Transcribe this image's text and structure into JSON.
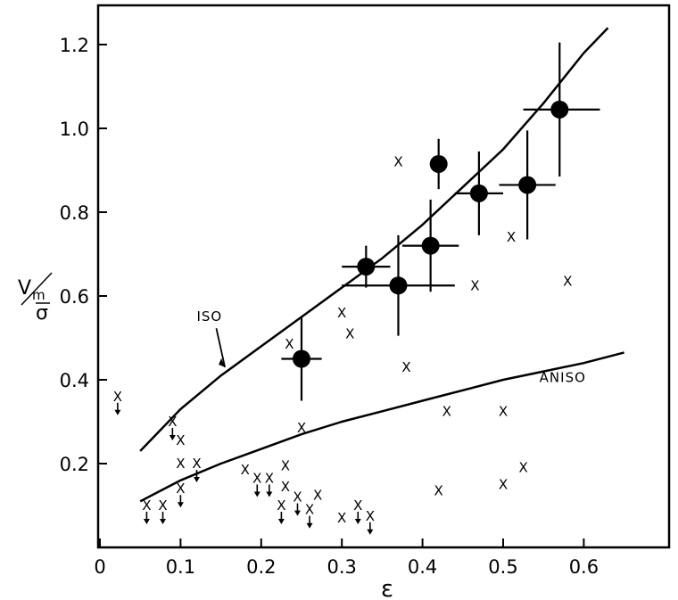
{
  "chart_data": {
    "type": "scatter",
    "title": "",
    "xlabel": "ε",
    "ylabel": {
      "v": "V",
      "sub": "m",
      "sigma": "σ"
    },
    "xlim": [
      0,
      0.7
    ],
    "ylim": [
      0,
      1.3
    ],
    "xticks": [
      {
        "v": 0,
        "label": "0"
      },
      {
        "v": 0.1,
        "label": "0.1"
      },
      {
        "v": 0.2,
        "label": "0.2"
      },
      {
        "v": 0.3,
        "label": "0.3"
      },
      {
        "v": 0.4,
        "label": "0.4"
      },
      {
        "v": 0.5,
        "label": "0.5"
      },
      {
        "v": 0.6,
        "label": "0.6"
      }
    ],
    "yticks": [
      {
        "v": 0.2,
        "label": "0.2"
      },
      {
        "v": 0.4,
        "label": "0.4"
      },
      {
        "v": 0.6,
        "label": "0.6"
      },
      {
        "v": 0.8,
        "label": "0.8"
      },
      {
        "v": 1.0,
        "label": "1.0"
      },
      {
        "v": 1.2,
        "label": "1.2"
      }
    ],
    "grid": false,
    "series": [
      {
        "name": "ISO",
        "kind": "line",
        "points": [
          [
            0.05,
            0.23
          ],
          [
            0.1,
            0.33
          ],
          [
            0.15,
            0.41
          ],
          [
            0.2,
            0.48
          ],
          [
            0.25,
            0.55
          ],
          [
            0.3,
            0.62
          ],
          [
            0.35,
            0.69
          ],
          [
            0.4,
            0.77
          ],
          [
            0.45,
            0.86
          ],
          [
            0.5,
            0.95
          ],
          [
            0.55,
            1.06
          ],
          [
            0.6,
            1.18
          ],
          [
            0.63,
            1.24
          ]
        ],
        "label_pos": [
          0.12,
          0.54
        ],
        "arrow_to": [
          0.155,
          0.43
        ]
      },
      {
        "name": "ANISO",
        "kind": "line",
        "points": [
          [
            0.05,
            0.11
          ],
          [
            0.07,
            0.13
          ],
          [
            0.1,
            0.16
          ],
          [
            0.15,
            0.2
          ],
          [
            0.2,
            0.235
          ],
          [
            0.25,
            0.27
          ],
          [
            0.3,
            0.3
          ],
          [
            0.35,
            0.325
          ],
          [
            0.4,
            0.35
          ],
          [
            0.45,
            0.375
          ],
          [
            0.5,
            0.4
          ],
          [
            0.55,
            0.42
          ],
          [
            0.6,
            0.44
          ],
          [
            0.65,
            0.465
          ]
        ],
        "label_pos": [
          0.545,
          0.395
        ]
      },
      {
        "kind": "filled-circle-errorbar",
        "points": [
          {
            "x": 0.25,
            "y": 0.45,
            "xerr": [
              0.025,
              0.025
            ],
            "yerr": [
              0.1,
              0.1
            ]
          },
          {
            "x": 0.33,
            "y": 0.67,
            "xerr": [
              0.03,
              0.03
            ],
            "yerr": [
              0.05,
              0.05
            ]
          },
          {
            "x": 0.37,
            "y": 0.625,
            "xerr": [
              0.07,
              0.07
            ],
            "yerr": [
              0.12,
              0.12
            ]
          },
          {
            "x": 0.41,
            "y": 0.72,
            "xerr": [
              0.035,
              0.035
            ],
            "yerr": [
              0.11,
              0.11
            ]
          },
          {
            "x": 0.42,
            "y": 0.915,
            "xerr": [
              0,
              0
            ],
            "yerr": [
              0.06,
              0.06
            ]
          },
          {
            "x": 0.47,
            "y": 0.845,
            "xerr": [
              0.03,
              0.03
            ],
            "yerr": [
              0.1,
              0.1
            ]
          },
          {
            "x": 0.53,
            "y": 0.865,
            "xerr": [
              0.035,
              0.035
            ],
            "yerr": [
              0.13,
              0.13
            ]
          },
          {
            "x": 0.57,
            "y": 1.045,
            "xerr": [
              0.045,
              0.05
            ],
            "yerr": [
              0.16,
              0.16
            ]
          }
        ]
      },
      {
        "kind": "x-marker",
        "marker": "X",
        "points": [
          {
            "x": 0.37,
            "y": 0.92
          },
          {
            "x": 0.465,
            "y": 0.625
          },
          {
            "x": 0.51,
            "y": 0.74
          },
          {
            "x": 0.58,
            "y": 0.635
          },
          {
            "x": 0.3,
            "y": 0.56
          },
          {
            "x": 0.31,
            "y": 0.51
          },
          {
            "x": 0.38,
            "y": 0.43
          },
          {
            "x": 0.235,
            "y": 0.485
          },
          {
            "x": 0.25,
            "y": 0.285
          },
          {
            "x": 0.43,
            "y": 0.325
          },
          {
            "x": 0.5,
            "y": 0.325
          },
          {
            "x": 0.42,
            "y": 0.135
          },
          {
            "x": 0.5,
            "y": 0.15
          },
          {
            "x": 0.525,
            "y": 0.19
          },
          {
            "x": 0.1,
            "y": 0.255
          },
          {
            "x": 0.1,
            "y": 0.2
          },
          {
            "x": 0.18,
            "y": 0.185
          },
          {
            "x": 0.23,
            "y": 0.195
          },
          {
            "x": 0.23,
            "y": 0.145
          },
          {
            "x": 0.27,
            "y": 0.125
          },
          {
            "x": 0.3,
            "y": 0.07
          }
        ]
      },
      {
        "kind": "x-marker-upper-limit",
        "marker": "X",
        "points": [
          {
            "x": 0.022,
            "y": 0.36
          },
          {
            "x": 0.09,
            "y": 0.3
          },
          {
            "x": 0.12,
            "y": 0.2
          },
          {
            "x": 0.1,
            "y": 0.14
          },
          {
            "x": 0.058,
            "y": 0.1
          },
          {
            "x": 0.078,
            "y": 0.1
          },
          {
            "x": 0.195,
            "y": 0.165
          },
          {
            "x": 0.21,
            "y": 0.165
          },
          {
            "x": 0.225,
            "y": 0.1
          },
          {
            "x": 0.245,
            "y": 0.12
          },
          {
            "x": 0.26,
            "y": 0.09
          },
          {
            "x": 0.32,
            "y": 0.1
          },
          {
            "x": 0.335,
            "y": 0.075
          }
        ]
      }
    ]
  }
}
